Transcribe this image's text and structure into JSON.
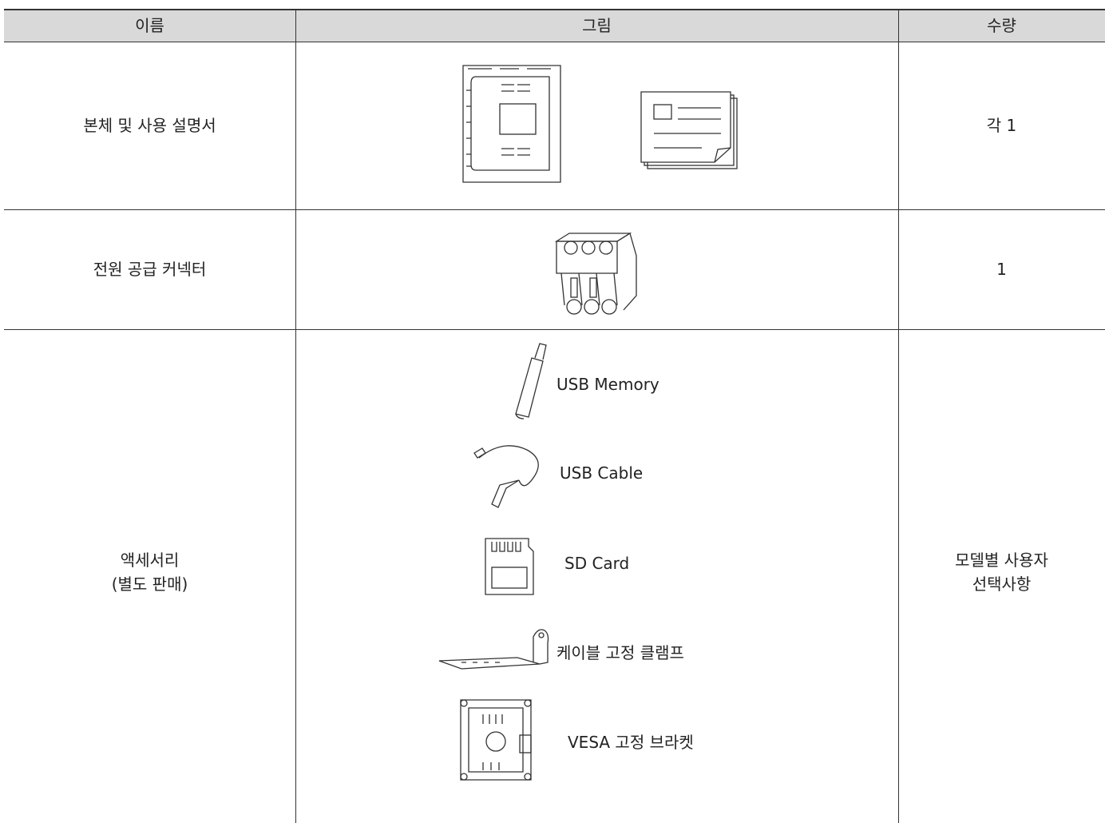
{
  "table": {
    "header": [
      "이름",
      "그림",
      "수량"
    ],
    "rows": [
      {
        "name": [
          "본체 및 사용 설명서"
        ],
        "quantity": [
          "각 1"
        ]
      },
      {
        "name": [
          "전원 공급 커넥터"
        ],
        "quantity": [
          "1"
        ]
      },
      {
        "name": [
          "액세서리",
          "(별도 판매)"
        ],
        "items": [
          "USB Memory",
          "USB Cable",
          "SD Card",
          "케이블 고정 클램프",
          "VESA 고정 브라켓"
        ],
        "quantity": [
          "모델별 사용자",
          "선택사항"
        ]
      }
    ]
  }
}
